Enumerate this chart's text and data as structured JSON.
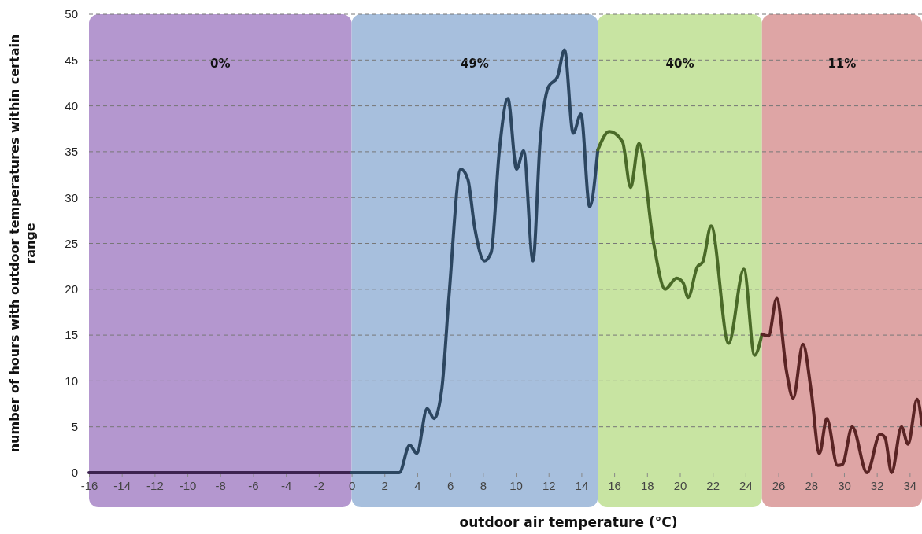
{
  "chart_data": {
    "type": "line",
    "xlabel": "outdoor air temperature (°C)",
    "ylabel": "number of hours with outdoor temperatures within certain range",
    "xlim": [
      -16,
      34.75
    ],
    "xticks": [
      -16,
      -14,
      -12,
      -10,
      -8,
      -6,
      -4,
      -2,
      0,
      2,
      4,
      6,
      8,
      10,
      12,
      14,
      16,
      18,
      20,
      22,
      24,
      26,
      28,
      30,
      32,
      34
    ],
    "ylim": [
      0,
      50
    ],
    "yticks": [
      0,
      5,
      10,
      15,
      20,
      25,
      30,
      35,
      40,
      45,
      50
    ],
    "grid": "y",
    "line_style": "solid",
    "marker": "none",
    "bands": [
      {
        "axis": "x",
        "from": -16,
        "to": 0,
        "label": "0%",
        "color": "#b497cf"
      },
      {
        "axis": "x",
        "from": 0,
        "to": 15,
        "label": "49%",
        "color": "#a7bfdd"
      },
      {
        "axis": "x",
        "from": 15,
        "to": 25,
        "label": "40%",
        "color": "#c8e4a2"
      },
      {
        "axis": "x",
        "from": 25,
        "to": 34.75,
        "label": "11%",
        "color": "#dea5a5"
      }
    ],
    "series": [
      {
        "color": "#3d2350",
        "x": [
          -16,
          0
        ],
        "values": [
          0,
          0
        ]
      },
      {
        "color": "#2c4660",
        "x": [
          0,
          2.9,
          3.54,
          3.97,
          4.6,
          5.02,
          5.5,
          5.93,
          6.65,
          7.08,
          7.5,
          8.09,
          8.5,
          9,
          9.52,
          10.05,
          10.48,
          11.05,
          11.48,
          12,
          12.53,
          12.97,
          13.5,
          13.97,
          14.5,
          15
        ],
        "values": [
          0,
          0,
          3,
          2.1,
          7,
          5.9,
          9.2,
          19.2,
          33.1,
          32,
          26.7,
          23.1,
          24,
          35.1,
          40.8,
          33.1,
          35.1,
          23.1,
          36,
          42.1,
          43.1,
          46.1,
          37,
          39.1,
          29,
          35.2
        ]
      },
      {
        "color": "#4a6a28",
        "x": [
          15,
          15.7,
          16.5,
          17,
          17.5,
          18.4,
          19.1,
          19.8,
          20.2,
          20.5,
          21.05,
          21.4,
          21.9,
          22.97,
          23.9,
          24.55,
          25
        ],
        "values": [
          35.2,
          37.2,
          36.1,
          31.1,
          35.9,
          25,
          20,
          21.2,
          20.7,
          19.1,
          22.4,
          23,
          26.9,
          14.1,
          22.2,
          12.8,
          15.1
        ]
      },
      {
        "color": "#5a2424",
        "x": [
          25,
          25.4,
          25.9,
          26.5,
          26.9,
          27.5,
          28,
          28.5,
          28.95,
          29.6,
          29.9,
          30.5,
          31.4,
          32.2,
          32.5,
          32.9,
          33.5,
          33.9,
          34.45,
          34.75
        ],
        "values": [
          15.1,
          14.9,
          19,
          11,
          8.1,
          14,
          8.9,
          2.1,
          5.9,
          0.8,
          0.9,
          5,
          0,
          4.2,
          3.8,
          0,
          5,
          3.1,
          8,
          5.2
        ]
      }
    ]
  }
}
